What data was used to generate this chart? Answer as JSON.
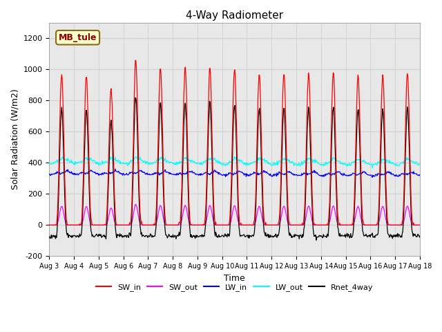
{
  "title": "4-Way Radiometer",
  "xlabel": "Time",
  "ylabel": "Solar Radiation (W/m2)",
  "ylim": [
    -200,
    1300
  ],
  "yticks": [
    -200,
    0,
    200,
    400,
    600,
    800,
    1000,
    1200
  ],
  "x_tick_labels": [
    "Aug 3",
    "Aug 4",
    "Aug 5",
    "Aug 6",
    "Aug 7",
    "Aug 8",
    "Aug 9",
    "Aug 10",
    "Aug 11",
    "Aug 12",
    "Aug 13",
    "Aug 14",
    "Aug 15",
    "Aug 16",
    "Aug 17",
    "Aug 18"
  ],
  "station_label": "MB_tule",
  "station_label_color": "#8B0000",
  "station_box_facecolor": "#FFFFCC",
  "station_box_edgecolor": "#8B6914",
  "colors": {
    "SW_in": "#FF0000",
    "SW_out": "#FF00FF",
    "LW_in": "#0000FF",
    "LW_out": "#00FFFF",
    "Rnet_4way": "#000000"
  },
  "legend_labels": [
    "SW_in",
    "SW_out",
    "LW_in",
    "LW_out",
    "Rnet_4way"
  ],
  "grid_color": "#D0D0D0",
  "bg_color": "#E8E8E8"
}
